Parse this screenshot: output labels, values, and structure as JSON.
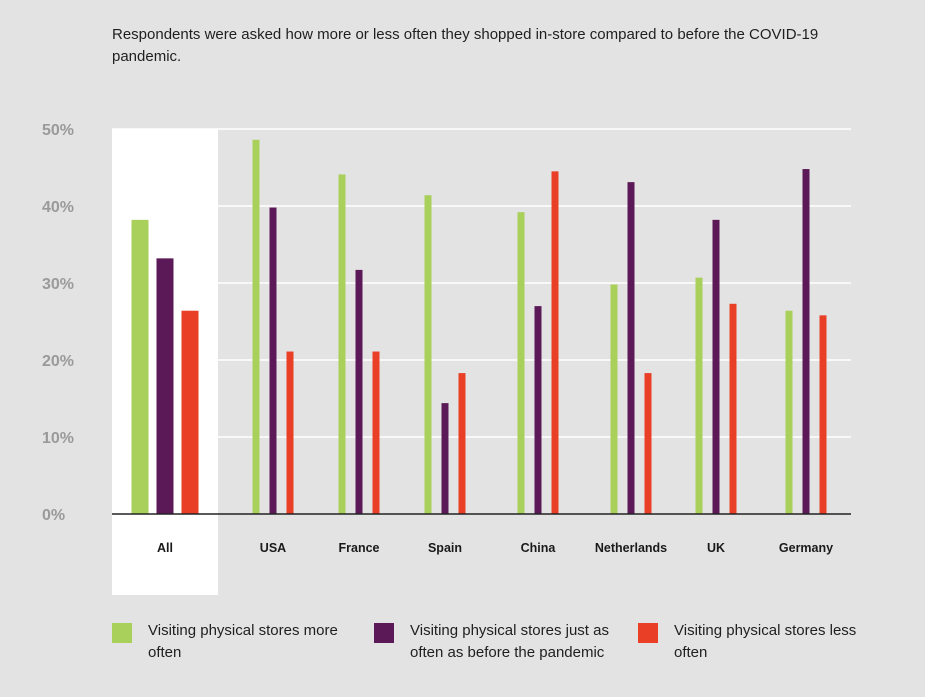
{
  "subtitle": "Respondents were asked how more or less often they shopped in-store compared to before the COVID-19 pandemic.",
  "colors": {
    "more": "#a8d05a",
    "same": "#5b1a57",
    "less": "#e83f26",
    "grid": "#ffffff",
    "highlight": "#ffffff",
    "axis": "#222222",
    "tick": "#9a9a9a"
  },
  "chart_data": {
    "type": "bar",
    "title": "Respondents were asked how more or less often they shopped in-store compared to before the COVID-19 pandemic.",
    "xlabel": "",
    "ylabel": "",
    "ylim": [
      0,
      50
    ],
    "yticks": [
      0,
      10,
      20,
      30,
      40,
      50
    ],
    "ytick_labels": [
      "0%",
      "10%",
      "20%",
      "30%",
      "40%",
      "50%"
    ],
    "grid": true,
    "highlighted_category": "All",
    "categories": [
      "All",
      "USA",
      "France",
      "Spain",
      "China",
      "Netherlands",
      "UK",
      "Germany"
    ],
    "series": [
      {
        "name": "Visiting physical stores more often",
        "values": [
          38.2,
          48.6,
          44.1,
          41.4,
          39.2,
          29.8,
          30.7,
          26.4
        ]
      },
      {
        "name": "Visiting physical stores just as often as before the pandemic",
        "values": [
          33.2,
          39.8,
          31.7,
          14.4,
          27.0,
          43.1,
          38.2,
          44.8
        ]
      },
      {
        "name": "Visiting physical stores less often",
        "values": [
          26.4,
          21.1,
          21.1,
          18.3,
          44.5,
          18.3,
          27.3,
          25.8
        ]
      }
    ]
  },
  "legend": {
    "more": "Visiting physical stores more often",
    "same": "Visiting physical stores just as often as before the pandemic",
    "less": "Visiting physical stores less often"
  }
}
